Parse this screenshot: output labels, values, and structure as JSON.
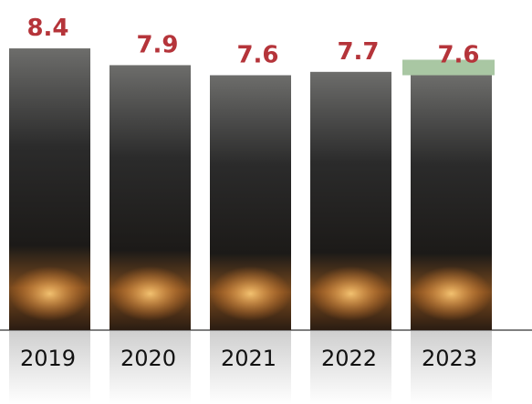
{
  "chart_data": {
    "type": "bar",
    "categories": [
      "2019",
      "2020",
      "2021",
      "2022",
      "2023"
    ],
    "values": [
      8.4,
      7.9,
      7.6,
      7.7,
      7.6
    ],
    "ylim": [
      0,
      9
    ],
    "label_color": "#b5343a",
    "highlight_color": "#a9c7a3"
  }
}
